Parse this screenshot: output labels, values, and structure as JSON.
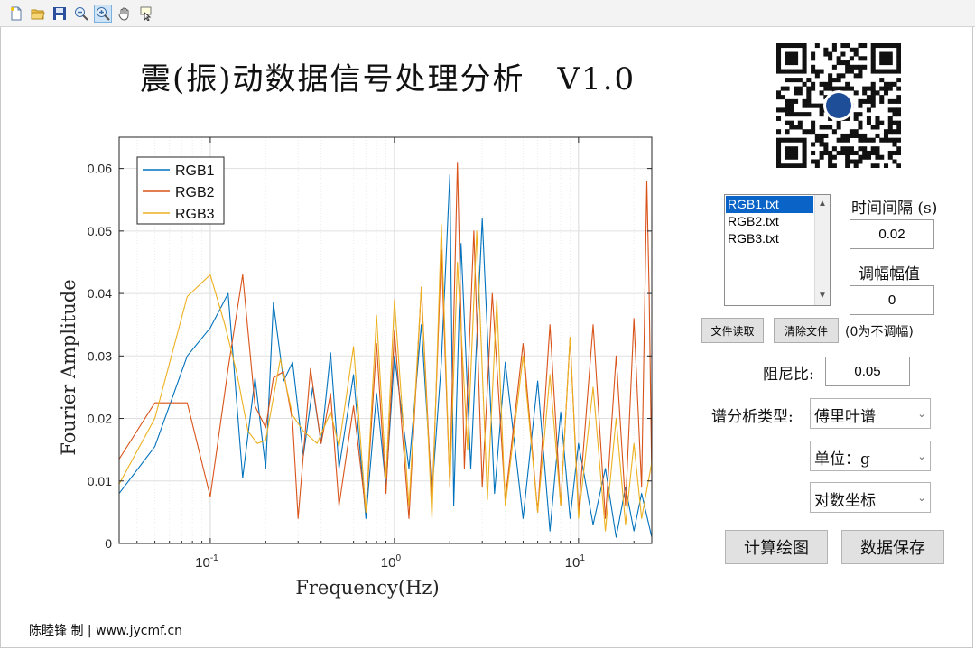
{
  "toolbar": {
    "buttons": [
      {
        "icon": "new-file-icon"
      },
      {
        "icon": "open-folder-icon"
      },
      {
        "icon": "save-icon"
      },
      {
        "icon": "zoom-out-icon"
      },
      {
        "icon": "zoom-in-icon",
        "active": true
      },
      {
        "icon": "pan-hand-icon"
      },
      {
        "icon": "data-cursor-icon"
      }
    ]
  },
  "app": {
    "title": "震(振)动数据信号处理分析　V1.0",
    "footer": "陈睦锋 制 | www.jycmf.cn"
  },
  "files": {
    "items": [
      "RGB1.txt",
      "RGB2.txt",
      "RGB3.txt"
    ],
    "selected_index": 0,
    "read_button": "文件读取",
    "clear_button": "清除文件"
  },
  "params": {
    "interval_label": "时间间隔 (s)",
    "interval_value": "0.02",
    "amp_label": "调幅幅值",
    "amp_value": "0",
    "amp_note": "(0为不调幅)",
    "damping_label": "阻尼比:",
    "damping_value": "0.05",
    "spectrum_type_label": "谱分析类型:",
    "spectrum_type_value": "傅里叶谱",
    "unit_value": "单位：g",
    "axis_scale_value": "对数坐标"
  },
  "actions": {
    "compute_button": "计算绘图",
    "save_button": "数据保存"
  },
  "colors": {
    "RGB1": "#0072bd",
    "RGB2": "#d95319",
    "RGB3": "#edb120",
    "selection": "#0a64c8"
  },
  "chart_data": {
    "type": "line",
    "xscale": "log",
    "xlim": [
      0.032,
      25
    ],
    "ylim": [
      0,
      0.065
    ],
    "xlabel": "Frequency(Hz)",
    "ylabel": "Fourier Amplitude",
    "x_ticks": [
      0.1,
      1,
      10
    ],
    "x_tick_labels": [
      {
        "base": "10",
        "exp": "-1"
      },
      {
        "base": "10",
        "exp": "0"
      },
      {
        "base": "10",
        "exp": "1"
      }
    ],
    "y_ticks": [
      0,
      0.01,
      0.02,
      0.03,
      0.04,
      0.05,
      0.06
    ],
    "y_tick_labels": [
      "0",
      "0.01",
      "0.02",
      "0.03",
      "0.04",
      "0.05",
      "0.06"
    ],
    "grid": true,
    "legend_position": "top-left",
    "series": [
      {
        "name": "RGB1",
        "x": [
          0.032,
          0.05,
          0.075,
          0.1,
          0.125,
          0.15,
          0.175,
          0.2,
          0.22,
          0.25,
          0.28,
          0.32,
          0.36,
          0.4,
          0.45,
          0.5,
          0.6,
          0.7,
          0.8,
          0.9,
          1.0,
          1.2,
          1.4,
          1.6,
          1.8,
          2.0,
          2.1,
          2.3,
          2.6,
          3.0,
          3.5,
          4.0,
          5.0,
          6.0,
          7.0,
          8.0,
          9.0,
          10.0,
          12.0,
          14.0,
          16.0,
          18.0,
          20.0,
          22.0,
          25.0
        ],
        "y": [
          0.008,
          0.0155,
          0.03,
          0.0345,
          0.04,
          0.0105,
          0.0265,
          0.012,
          0.0385,
          0.026,
          0.029,
          0.014,
          0.025,
          0.016,
          0.0305,
          0.012,
          0.027,
          0.004,
          0.024,
          0.009,
          0.03,
          0.012,
          0.035,
          0.008,
          0.029,
          0.059,
          0.006,
          0.048,
          0.012,
          0.052,
          0.008,
          0.029,
          0.004,
          0.026,
          0.002,
          0.021,
          0.004,
          0.016,
          0.003,
          0.012,
          0.001,
          0.009,
          0.002,
          0.008,
          0.001
        ]
      },
      {
        "name": "RGB2",
        "x": [
          0.032,
          0.05,
          0.075,
          0.1,
          0.125,
          0.15,
          0.175,
          0.2,
          0.22,
          0.25,
          0.28,
          0.3,
          0.35,
          0.4,
          0.45,
          0.5,
          0.6,
          0.7,
          0.8,
          0.9,
          1.0,
          1.2,
          1.4,
          1.6,
          1.8,
          2.0,
          2.2,
          2.4,
          2.7,
          3.0,
          3.4,
          4.0,
          5.0,
          6.0,
          7.0,
          8.0,
          9.0,
          10.0,
          12.0,
          14.0,
          16.0,
          18.0,
          20.0,
          22.0,
          23.5,
          24.2,
          25.0
        ],
        "y": [
          0.0135,
          0.0225,
          0.0225,
          0.0075,
          0.028,
          0.043,
          0.022,
          0.0185,
          0.0265,
          0.0275,
          0.0195,
          0.004,
          0.028,
          0.016,
          0.024,
          0.006,
          0.022,
          0.005,
          0.032,
          0.008,
          0.034,
          0.004,
          0.041,
          0.006,
          0.047,
          0.009,
          0.061,
          0.012,
          0.05,
          0.009,
          0.04,
          0.007,
          0.032,
          0.005,
          0.035,
          0.006,
          0.033,
          0.005,
          0.035,
          0.004,
          0.03,
          0.006,
          0.036,
          0.009,
          0.058,
          0.04,
          0.01
        ]
      },
      {
        "name": "RGB3",
        "x": [
          0.032,
          0.05,
          0.075,
          0.1,
          0.12,
          0.14,
          0.16,
          0.18,
          0.2,
          0.24,
          0.28,
          0.32,
          0.38,
          0.45,
          0.5,
          0.6,
          0.7,
          0.8,
          0.9,
          1.0,
          1.2,
          1.4,
          1.6,
          1.8,
          2.0,
          2.2,
          2.5,
          2.8,
          3.2,
          3.6,
          4.0,
          5.0,
          6.0,
          7.0,
          8.0,
          9.0,
          10.0,
          12.0,
          14.0,
          16.0,
          18.0,
          20.0,
          22.0,
          25.0
        ],
        "y": [
          0.0095,
          0.02,
          0.0395,
          0.043,
          0.035,
          0.027,
          0.018,
          0.016,
          0.0165,
          0.0295,
          0.0205,
          0.018,
          0.016,
          0.021,
          0.0155,
          0.0315,
          0.005,
          0.0365,
          0.0105,
          0.039,
          0.006,
          0.041,
          0.004,
          0.051,
          0.009,
          0.045,
          0.015,
          0.05,
          0.007,
          0.039,
          0.006,
          0.03,
          0.005,
          0.027,
          0.006,
          0.033,
          0.004,
          0.025,
          0.002,
          0.02,
          0.003,
          0.016,
          0.004,
          0.013
        ]
      }
    ]
  }
}
